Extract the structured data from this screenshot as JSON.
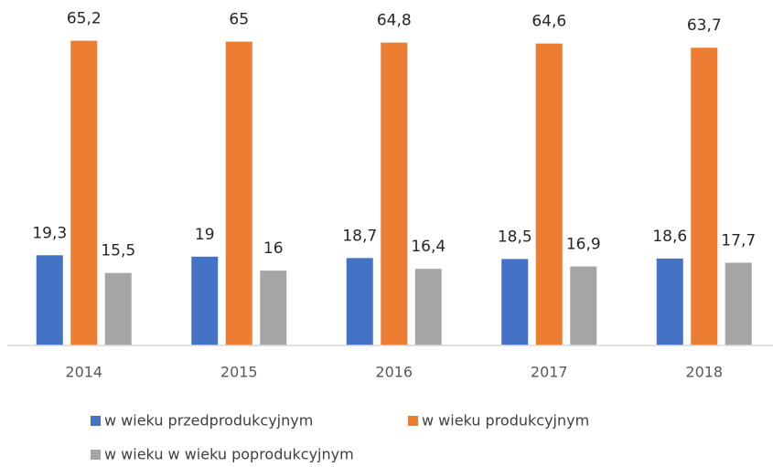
{
  "chart_data": {
    "type": "bar",
    "categories": [
      "2014",
      "2015",
      "2016",
      "2017",
      "2018"
    ],
    "series": [
      {
        "name": "w wieku przedprodukcyjnym",
        "color": "#4472c4",
        "values": [
          19.3,
          19,
          18.7,
          18.5,
          18.6
        ],
        "value_labels": [
          "19,3",
          "19",
          "18,7",
          "18,5",
          "18,6"
        ]
      },
      {
        "name": "w wieku produkcyjnym",
        "color": "#ed7d31",
        "values": [
          65.2,
          65,
          64.8,
          64.6,
          63.7
        ],
        "value_labels": [
          "65,2",
          "65",
          "64,8",
          "64,6",
          "63,7"
        ]
      },
      {
        "name": "w wieku w wieku poprodukcyjnym",
        "color": "#a5a5a5",
        "values": [
          15.5,
          16,
          16.4,
          16.9,
          17.7
        ],
        "value_labels": [
          "15,5",
          "16",
          "16,4",
          "16,9",
          "17,7"
        ]
      }
    ],
    "ylim": [
      0,
      70
    ]
  }
}
